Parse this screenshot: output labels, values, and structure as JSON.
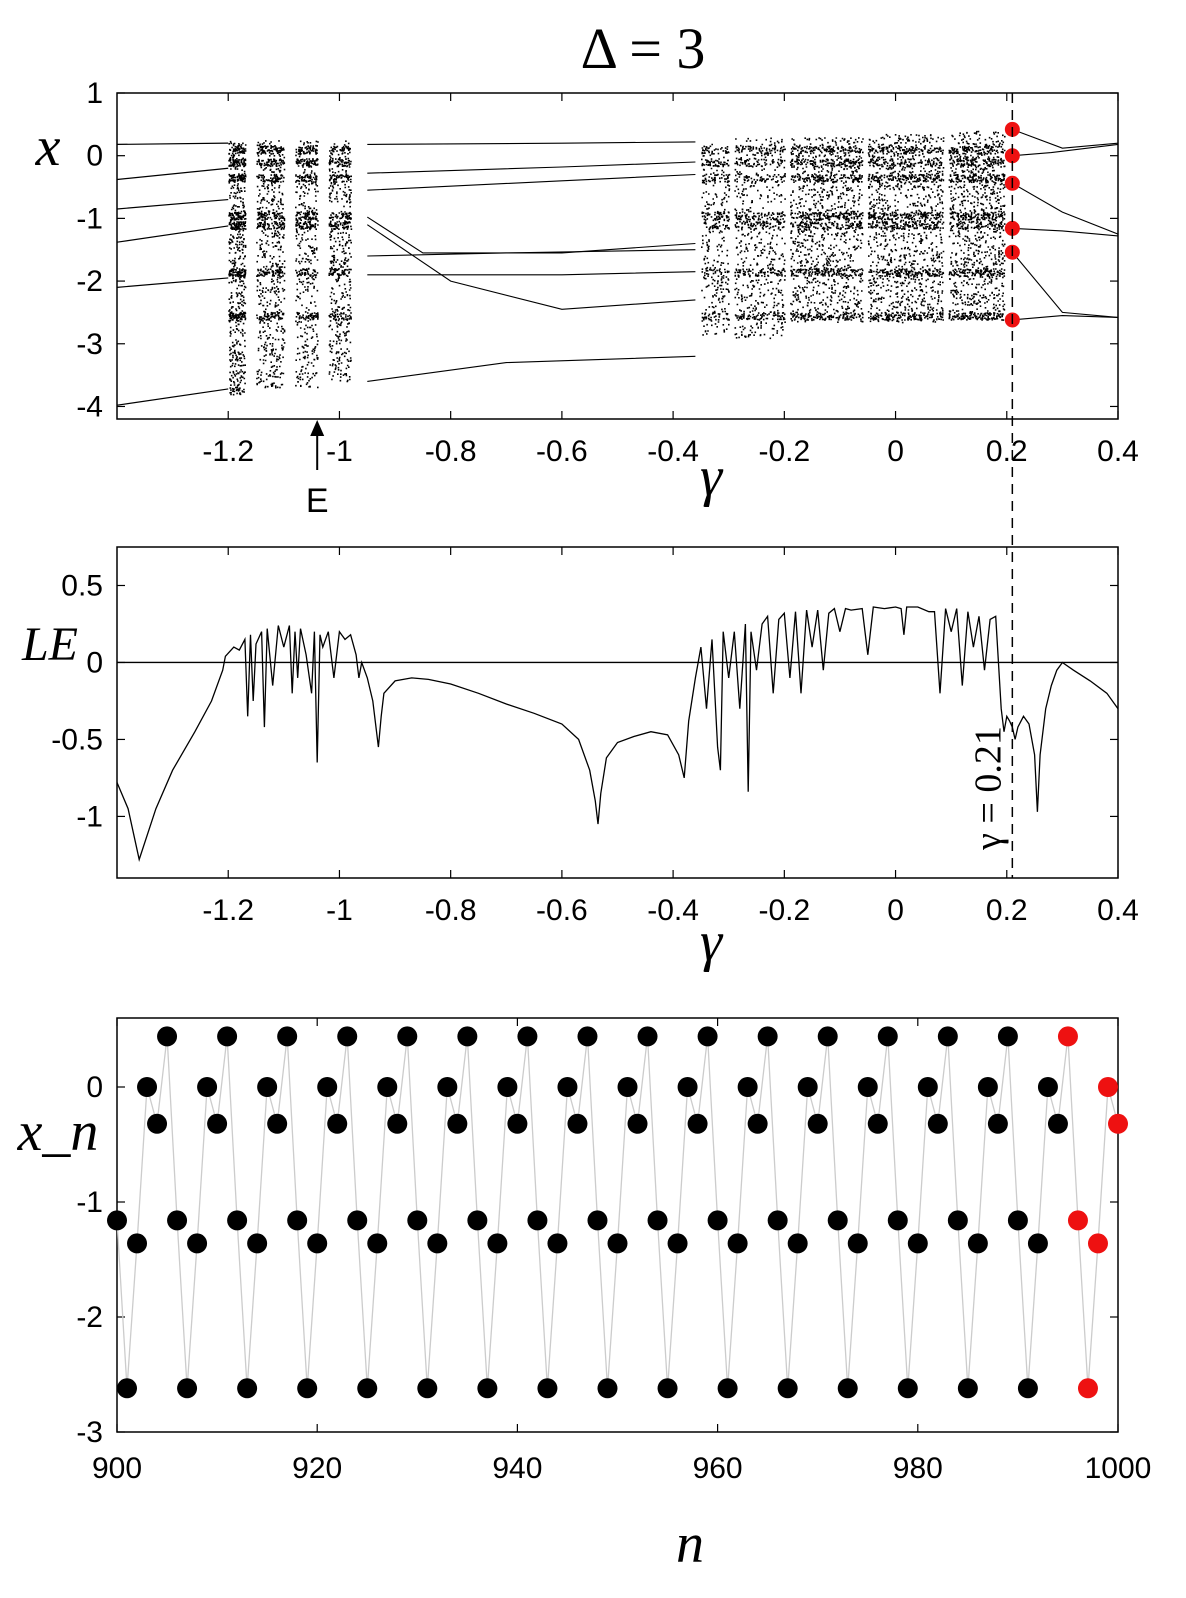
{
  "figure": {
    "title": "Δ = 3"
  },
  "chart_data": [
    {
      "id": "bifurcation",
      "type": "scatter",
      "title": "Δ = 3",
      "xlabel": "γ",
      "ylabel": "x",
      "xlim": [
        -1.4,
        0.4
      ],
      "ylim": [
        -4.2,
        1
      ],
      "xticks": [
        -1.2,
        -1,
        -0.8,
        -0.6,
        -0.4,
        -0.2,
        0,
        0.2,
        0.4
      ],
      "xtick_labels": [
        "-1.2",
        "-1",
        "-0.8",
        "-0.6",
        "-0.4",
        "-0.2",
        "0",
        "0.2",
        "0.4"
      ],
      "yticks": [
        1,
        0,
        -1,
        -2,
        -3,
        -4
      ],
      "ytick_labels": [
        "1",
        "0",
        "-1",
        "-2",
        "-3",
        "-4"
      ],
      "marker_gamma": 0.21,
      "highlight_points": {
        "gamma": 0.21,
        "x": [
          0.42,
          0.0,
          -0.44,
          -1.16,
          -1.54,
          -2.62
        ]
      },
      "periodic_branches_left": [
        {
          "gamma": [
            -1.4,
            -1.2
          ],
          "x": [
            0.18,
            0.2
          ]
        },
        {
          "gamma": [
            -1.4,
            -1.2
          ],
          "x": [
            -0.38,
            -0.2
          ]
        },
        {
          "gamma": [
            -1.4,
            -1.2
          ],
          "x": [
            -0.85,
            -0.7
          ]
        },
        {
          "gamma": [
            -1.4,
            -1.2
          ],
          "x": [
            -1.38,
            -1.12
          ]
        },
        {
          "gamma": [
            -1.4,
            -1.2
          ],
          "x": [
            -2.1,
            -1.95
          ]
        },
        {
          "gamma": [
            -1.4,
            -1.2
          ],
          "x": [
            -3.98,
            -3.72
          ]
        }
      ],
      "annotation_E": {
        "label": "E",
        "gamma": -1.04
      }
    },
    {
      "id": "lyapunov",
      "type": "line",
      "xlabel": "γ",
      "ylabel": "LE",
      "xlim": [
        -1.4,
        0.4
      ],
      "ylim": [
        -1.4,
        0.75
      ],
      "xticks": [
        -1.2,
        -1,
        -0.8,
        -0.6,
        -0.4,
        -0.2,
        0,
        0.2,
        0.4
      ],
      "xtick_labels": [
        "-1.2",
        "-1",
        "-0.8",
        "-0.6",
        "-0.4",
        "-0.2",
        "0",
        "0.2",
        "0.4"
      ],
      "yticks": [
        0.5,
        0,
        -0.5,
        -1
      ],
      "ytick_labels": [
        "0.5",
        "0",
        "-0.5",
        "-1"
      ],
      "marker_gamma": 0.21,
      "marker_label": "γ = 0.21",
      "x": [
        -1.4,
        -1.38,
        -1.36,
        -1.33,
        -1.3,
        -1.26,
        -1.23,
        -1.21,
        -1.205,
        -1.19,
        -1.18,
        -1.17,
        -1.165,
        -1.16,
        -1.155,
        -1.15,
        -1.14,
        -1.135,
        -1.13,
        -1.12,
        -1.11,
        -1.1,
        -1.09,
        -1.085,
        -1.08,
        -1.075,
        -1.07,
        -1.06,
        -1.05,
        -1.045,
        -1.04,
        -1.035,
        -1.03,
        -1.02,
        -1.01,
        -1.0,
        -0.99,
        -0.98,
        -0.97,
        -0.965,
        -0.96,
        -0.95,
        -0.94,
        -0.93,
        -0.925,
        -0.92,
        -0.9,
        -0.87,
        -0.84,
        -0.8,
        -0.75,
        -0.7,
        -0.65,
        -0.6,
        -0.57,
        -0.55,
        -0.54,
        -0.535,
        -0.53,
        -0.52,
        -0.5,
        -0.47,
        -0.44,
        -0.41,
        -0.39,
        -0.38,
        -0.372,
        -0.36,
        -0.35,
        -0.34,
        -0.33,
        -0.32,
        -0.315,
        -0.31,
        -0.3,
        -0.29,
        -0.28,
        -0.27,
        -0.265,
        -0.26,
        -0.25,
        -0.24,
        -0.23,
        -0.22,
        -0.21,
        -0.2,
        -0.19,
        -0.18,
        -0.17,
        -0.16,
        -0.15,
        -0.14,
        -0.13,
        -0.12,
        -0.11,
        -0.1,
        -0.09,
        -0.08,
        -0.06,
        -0.05,
        -0.04,
        -0.02,
        0.0,
        0.01,
        0.015,
        0.02,
        0.04,
        0.06,
        0.07,
        0.08,
        0.09,
        0.1,
        0.11,
        0.12,
        0.13,
        0.14,
        0.15,
        0.16,
        0.17,
        0.18,
        0.19,
        0.195,
        0.2,
        0.205,
        0.21,
        0.215,
        0.22,
        0.23,
        0.24,
        0.25,
        0.255,
        0.26,
        0.27,
        0.28,
        0.29,
        0.3,
        0.32,
        0.35,
        0.38,
        0.4
      ],
      "y": [
        -0.78,
        -0.95,
        -1.28,
        -0.95,
        -0.7,
        -0.45,
        -0.25,
        -0.05,
        0.04,
        0.1,
        0.08,
        0.15,
        -0.35,
        0.18,
        -0.25,
        0.12,
        0.2,
        -0.42,
        0.22,
        -0.15,
        0.24,
        0.1,
        0.24,
        -0.2,
        0.2,
        -0.1,
        0.22,
        0.05,
        -0.2,
        0.2,
        -0.65,
        0.18,
        0.1,
        0.2,
        -0.1,
        0.2,
        0.15,
        0.18,
        0.05,
        -0.1,
        0.0,
        -0.1,
        -0.25,
        -0.55,
        -0.35,
        -0.2,
        -0.12,
        -0.1,
        -0.11,
        -0.14,
        -0.2,
        -0.27,
        -0.33,
        -0.4,
        -0.5,
        -0.7,
        -0.9,
        -1.05,
        -0.85,
        -0.62,
        -0.52,
        -0.48,
        -0.45,
        -0.47,
        -0.6,
        -0.75,
        -0.38,
        -0.1,
        0.1,
        -0.3,
        0.15,
        -0.55,
        -0.7,
        0.2,
        -0.1,
        0.2,
        -0.3,
        0.25,
        -0.84,
        0.2,
        -0.05,
        0.25,
        0.3,
        -0.2,
        0.28,
        0.32,
        -0.1,
        0.33,
        -0.2,
        0.34,
        0.1,
        0.34,
        -0.05,
        0.32,
        0.35,
        0.2,
        0.35,
        0.34,
        0.35,
        0.05,
        0.36,
        0.35,
        0.36,
        0.35,
        0.18,
        0.36,
        0.36,
        0.33,
        0.33,
        -0.2,
        0.35,
        0.2,
        0.35,
        -0.15,
        0.33,
        0.1,
        0.3,
        -0.05,
        0.28,
        0.3,
        -0.3,
        -0.45,
        -0.35,
        -0.38,
        -0.42,
        -0.5,
        -0.42,
        -0.35,
        -0.4,
        -0.6,
        -0.97,
        -0.6,
        -0.3,
        -0.15,
        -0.05,
        0.0,
        -0.05,
        -0.12,
        -0.2,
        -0.3
      ]
    },
    {
      "id": "timeseries",
      "type": "scatter",
      "xlabel": "n",
      "ylabel": "x_n",
      "xlim": [
        900,
        1000
      ],
      "ylim": [
        -3,
        0.6
      ],
      "xticks": [
        900,
        920,
        940,
        960,
        980,
        1000
      ],
      "xtick_labels": [
        "900",
        "920",
        "940",
        "960",
        "980",
        "1000"
      ],
      "yticks": [
        0,
        -1,
        -2,
        -3
      ],
      "ytick_labels": [
        "0",
        "-1",
        "-2",
        "-3"
      ],
      "cycle_values": [
        -1.16,
        -2.62,
        -1.36,
        0.0,
        -0.32,
        0.44
      ],
      "cycle_start_n": 900,
      "n_end": 1000,
      "highlight_from_n": 995,
      "point_color": "#000000",
      "highlight_color": "#ee1111",
      "line_color": "#cccccc"
    }
  ]
}
